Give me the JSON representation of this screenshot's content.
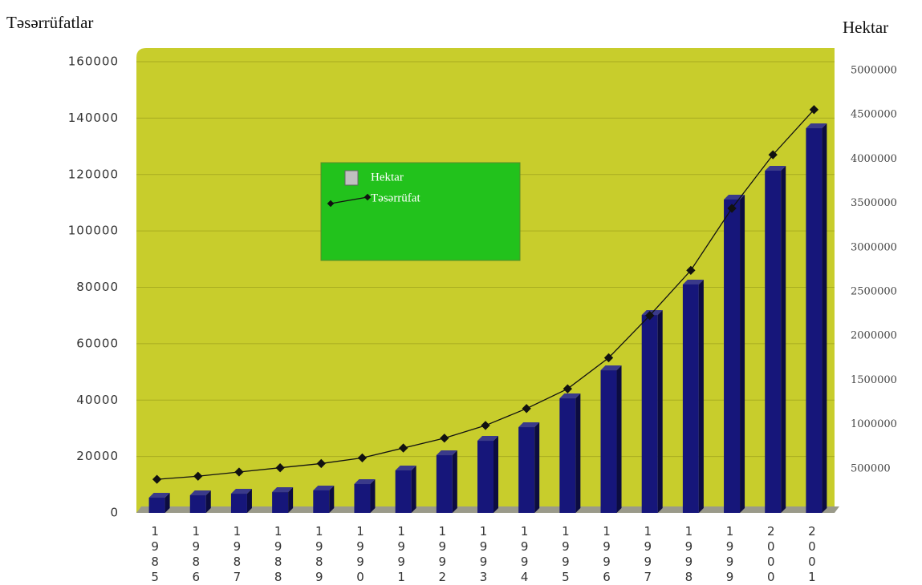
{
  "chart_data": {
    "type": "bar",
    "ylabel": "Təsərrüfatlar",
    "y2label": "Hektar",
    "categories": [
      "1985",
      "1986",
      "1987",
      "1988",
      "1989",
      "1990",
      "1991",
      "1992",
      "1993",
      "1994",
      "1995",
      "1996",
      "1997",
      "1998",
      "1999",
      "2000",
      "2001"
    ],
    "series": [
      {
        "name": "Hektar",
        "type": "bar",
        "axis": "y2",
        "color": "#16167a",
        "legend_color": "#c0c0c0",
        "values": [
          172000,
          199000,
          217000,
          235000,
          254000,
          326000,
          480000,
          652000,
          815000,
          969000,
          1295000,
          1612000,
          2237000,
          2582000,
          3542000,
          3868000,
          4348000
        ]
      },
      {
        "name": "Təsərrüfat",
        "type": "line",
        "axis": "y",
        "color": "#111111",
        "values": [
          11900,
          13000,
          14500,
          16000,
          17500,
          19500,
          23000,
          26500,
          31000,
          37000,
          44000,
          55000,
          70000,
          86000,
          108000,
          127000,
          143000
        ]
      }
    ],
    "ylim": [
      0,
      160000
    ],
    "yticks": [
      0,
      20000,
      40000,
      60000,
      80000,
      100000,
      120000,
      140000,
      160000
    ],
    "y2lim": [
      0,
      5100000
    ],
    "y2ticks": [
      500000,
      1000000,
      1500000,
      2000000,
      2500000,
      3000000,
      3500000,
      4000000,
      4500000,
      5000000
    ],
    "grid": true,
    "plot_color": "#c8cd2c",
    "legend_box_color": "#22c21c"
  }
}
